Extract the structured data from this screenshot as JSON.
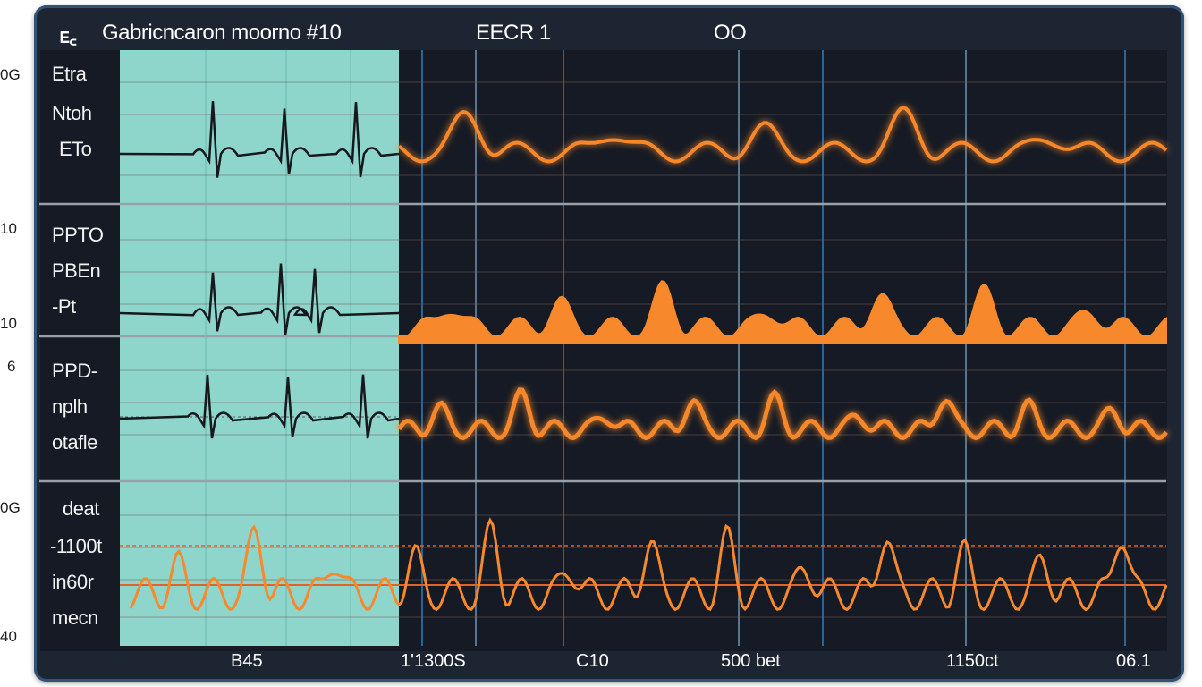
{
  "outer_labels": [
    "0G",
    "10",
    "10",
    "6",
    "0G",
    "40"
  ],
  "header": {
    "logo": "ᴇ꜀",
    "title": "Gabricncaron moorno #10",
    "ecg_label": "EECR 1",
    "status": "OO"
  },
  "channels": [
    {
      "lines": [
        "Etra",
        "Ntoh",
        "ETo"
      ]
    },
    {
      "lines": [
        "PPTO",
        "PBEn",
        "-Pt"
      ]
    },
    {
      "lines": [
        "PPD-",
        "nplh",
        "otafle"
      ]
    },
    {
      "lines": [
        "deat",
        "-1100t",
        "in60r",
        "mecn"
      ]
    }
  ],
  "time_labels": [
    "B45",
    "1'1300S",
    "C10",
    "500 bet",
    "1150ct",
    "06.1"
  ],
  "colors": {
    "panel_bg": "#1e2532",
    "plot_bg": "#151a24",
    "highlight": "#8ed6cc",
    "trace_dark": "#16181d",
    "trace_orange": "#f7882b",
    "grid_blue": "#3d8fd6",
    "separator": "#9aa0a8"
  }
}
